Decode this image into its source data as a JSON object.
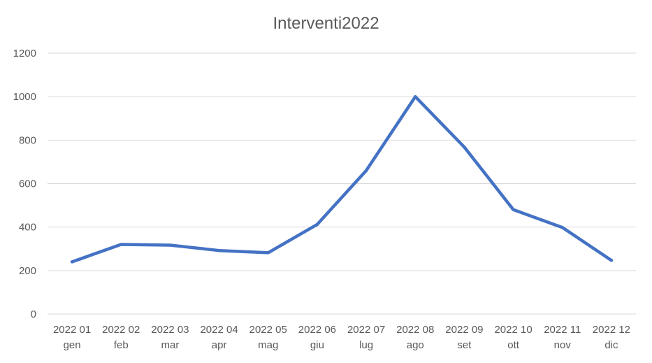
{
  "chart_data": {
    "type": "line",
    "title": "Interventi2022",
    "xlabel": "",
    "ylabel": "",
    "categories": [
      [
        "2022 01",
        "gen"
      ],
      [
        "2022 02",
        "feb"
      ],
      [
        "2022 03",
        "mar"
      ],
      [
        "2022 04",
        "apr"
      ],
      [
        "2022 05",
        "mag"
      ],
      [
        "2022 06",
        "giu"
      ],
      [
        "2022 07",
        "lug"
      ],
      [
        "2022 08",
        "ago"
      ],
      [
        "2022 09",
        "set"
      ],
      [
        "2022 10",
        "ott"
      ],
      [
        "2022 11",
        "nov"
      ],
      [
        "2022 12",
        "dic"
      ]
    ],
    "series": [
      {
        "values": [
          240,
          320,
          317,
          292,
          282,
          412,
          660,
          1000,
          768,
          480,
          398,
          247
        ],
        "color": "#4472C4"
      }
    ],
    "ylim": [
      0,
      1200
    ],
    "yticks": [
      0,
      200,
      400,
      600,
      800,
      1000,
      1200
    ],
    "grid": true,
    "legend": "none"
  }
}
